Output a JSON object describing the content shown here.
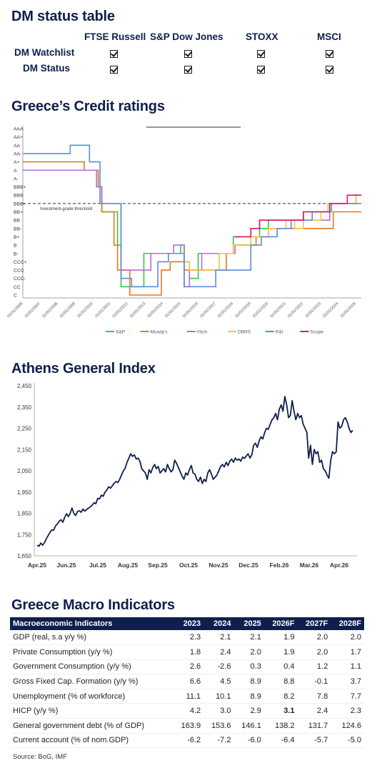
{
  "dm_table": {
    "title": "DM status table",
    "columns": [
      "FTSE Russell",
      "S&P Dow Jones",
      "STOXX",
      "MSCI"
    ],
    "rows": [
      {
        "label": "DM Watchlist",
        "checks": [
          true,
          true,
          true,
          true
        ]
      },
      {
        "label": "DM Status",
        "checks": [
          true,
          true,
          true,
          true
        ]
      }
    ]
  },
  "chart_data": [
    {
      "type": "line",
      "title": "Greece’s Credit ratings",
      "y_categories": [
        "C",
        "CC",
        "CCC-",
        "CCC",
        "CCC+",
        "B-",
        "B",
        "B+",
        "BB-",
        "BB",
        "BB+",
        "BBB-",
        "BBB",
        "BBB+",
        "A-",
        "A",
        "A+",
        "AA-",
        "AA",
        "AA+",
        "AAA"
      ],
      "x_ticks": [
        "01/01/2006",
        "01/01/2007",
        "01/01/2008",
        "01/01/2009",
        "01/01/2010",
        "01/01/2011",
        "01/01/2012",
        "01/01/2013",
        "01/01/2014",
        "01/01/2015",
        "01/01/2016",
        "01/01/2017",
        "01/01/2018",
        "01/01/2019",
        "01/01/2020",
        "01/01/2021",
        "01/01/2022",
        "01/01/2023",
        "01/01/2024",
        "01/01/2025"
      ],
      "threshold": {
        "level": "BBB-",
        "label": "Investment-grade threshold"
      },
      "series": [
        {
          "name": "S&P",
          "color": "#2ecc40",
          "points": [
            [
              2006,
              "A"
            ],
            [
              2009.0,
              "A"
            ],
            [
              2010.3,
              "BBB+"
            ],
            [
              2010.5,
              "BB+"
            ],
            [
              2011.4,
              "B"
            ],
            [
              2011.6,
              "CC"
            ],
            [
              2012.0,
              "CC"
            ],
            [
              2012.9,
              "B-"
            ],
            [
              2014.0,
              "B-"
            ],
            [
              2015.0,
              "B"
            ],
            [
              2015.2,
              "CCC+"
            ],
            [
              2015.5,
              "CCC-"
            ],
            [
              2016.0,
              "B-"
            ],
            [
              2016.5,
              "B-"
            ],
            [
              2017.0,
              "B-"
            ],
            [
              2018.0,
              "B+"
            ],
            [
              2018.5,
              "B+"
            ],
            [
              2019.5,
              "BB-"
            ],
            [
              2020.0,
              "BB"
            ],
            [
              2021.0,
              "BB"
            ],
            [
              2022.0,
              "BB+"
            ],
            [
              2023.4,
              "BBB-"
            ],
            [
              2025.0,
              "BBB"
            ]
          ]
        },
        {
          "name": "Moody's",
          "color": "#e6781e",
          "points": [
            [
              2006,
              "A+"
            ],
            [
              2009.5,
              "A"
            ],
            [
              2010.3,
              "BBB+"
            ],
            [
              2010.5,
              "BB+"
            ],
            [
              2011.2,
              "B"
            ],
            [
              2011.4,
              "CCC"
            ],
            [
              2012.1,
              "C"
            ],
            [
              2013.6,
              "C"
            ],
            [
              2013.9,
              "CCC"
            ],
            [
              2014.4,
              "CCC+"
            ],
            [
              2015.2,
              "CCC"
            ],
            [
              2016.5,
              "CCC"
            ],
            [
              2017.6,
              "B-"
            ],
            [
              2018.1,
              "B"
            ],
            [
              2019.3,
              "B+"
            ],
            [
              2020.0,
              "BB-"
            ],
            [
              2021.0,
              "BB-"
            ],
            [
              2022.0,
              "BB-"
            ],
            [
              2023.0,
              "BB-"
            ],
            [
              2023.7,
              "BB+"
            ],
            [
              2024.0,
              "BB+"
            ],
            [
              2025.0,
              "BB+"
            ]
          ]
        },
        {
          "name": "Fitch",
          "color": "#b86bd6",
          "points": [
            [
              2006,
              "A"
            ],
            [
              2009.3,
              "A"
            ],
            [
              2010.2,
              "BBB+"
            ],
            [
              2010.5,
              "BBB-"
            ],
            [
              2011.3,
              "BBB-"
            ],
            [
              2011.6,
              "CCC"
            ],
            [
              2012.2,
              "CCC"
            ],
            [
              2013.3,
              "B-"
            ],
            [
              2014.0,
              "B-"
            ],
            [
              2014.6,
              "B"
            ],
            [
              2015.2,
              "CC"
            ],
            [
              2015.5,
              "CCC"
            ],
            [
              2016.2,
              "B-"
            ],
            [
              2017.5,
              "B-"
            ],
            [
              2018.1,
              "B"
            ],
            [
              2019.0,
              "BB-"
            ],
            [
              2019.5,
              "BB"
            ],
            [
              2020.0,
              "BB"
            ],
            [
              2022.0,
              "BB"
            ],
            [
              2023.0,
              "BB"
            ],
            [
              2023.5,
              "BBB-"
            ],
            [
              2025.0,
              "BBB"
            ]
          ]
        },
        {
          "name": "DBRS",
          "color": "#f5c242",
          "points": [
            [
              2015.2,
              "CCC+"
            ],
            [
              2015.5,
              "CCC"
            ],
            [
              2016.5,
              "CCC"
            ],
            [
              2017.2,
              "B-"
            ],
            [
              2018.0,
              "B"
            ],
            [
              2019.0,
              "B+"
            ],
            [
              2020.0,
              "BB-"
            ],
            [
              2021.0,
              "BB"
            ],
            [
              2021.5,
              "BB-"
            ],
            [
              2022.0,
              "BB"
            ],
            [
              2023.0,
              "BB+"
            ],
            [
              2023.4,
              "BBB-"
            ],
            [
              2024.0,
              "BBB-"
            ],
            [
              2025.0,
              "BBB"
            ]
          ]
        },
        {
          "name": "R&I",
          "color": "#5b8fd6",
          "points": [
            [
              2006,
              "AA-"
            ],
            [
              2008.3,
              "AA-"
            ],
            [
              2008.7,
              "AA"
            ],
            [
              2009.4,
              "AA"
            ],
            [
              2009.8,
              "A+"
            ],
            [
              2010.4,
              "BBB-"
            ],
            [
              2011.3,
              "BBB-"
            ],
            [
              2011.6,
              "CCC-"
            ],
            [
              2012.2,
              "CC"
            ],
            [
              2013.2,
              "CC"
            ],
            [
              2013.7,
              "CCC+"
            ],
            [
              2014.3,
              "B-"
            ],
            [
              2014.8,
              "B-"
            ],
            [
              2015.2,
              "CC"
            ],
            [
              2016.0,
              "CC"
            ],
            [
              2016.5,
              "CC"
            ],
            [
              2017.0,
              "CCC"
            ],
            [
              2018.0,
              "CCC"
            ],
            [
              2019.0,
              "B"
            ],
            [
              2019.6,
              "B+"
            ],
            [
              2020.5,
              "BB-"
            ],
            [
              2021.3,
              "BB"
            ],
            [
              2022.5,
              "BB+"
            ],
            [
              2023.3,
              "BB+"
            ],
            [
              2023.6,
              "BBB-"
            ],
            [
              2025.0,
              "BBB-"
            ]
          ]
        },
        {
          "name": "Scope",
          "color": "#e0176e",
          "points": [
            [
              2018.1,
              "B+"
            ],
            [
              2019.0,
              "BB-"
            ],
            [
              2019.5,
              "BB"
            ],
            [
              2021.0,
              "BB"
            ],
            [
              2022.0,
              "BB+"
            ],
            [
              2023.0,
              "BB+"
            ],
            [
              2023.5,
              "BBB-"
            ],
            [
              2024.3,
              "BBB-"
            ],
            [
              2024.5,
              "BBB"
            ],
            [
              2025.0,
              "BBB"
            ]
          ]
        }
      ]
    },
    {
      "type": "line",
      "title": "Athens General Index",
      "x_ticks": [
        "Apr.25",
        "Jun.25",
        "Jul.25",
        "Aug.25",
        "Sep.25",
        "Oct.25",
        "Nov.25",
        "Dec.25",
        "Feb.26",
        "Mar.26",
        "Apr.26"
      ],
      "y_ticks": [
        "1,650",
        "1,750",
        "1,850",
        "1,950",
        "2,050",
        "2,150",
        "2,250",
        "2,350",
        "2,450"
      ],
      "ylim": [
        1650,
        2450
      ],
      "color": "#0f1f4d",
      "values": [
        1700,
        1695,
        1710,
        1700,
        1712,
        1730,
        1745,
        1760,
        1772,
        1770,
        1790,
        1800,
        1812,
        1820,
        1808,
        1830,
        1848,
        1835,
        1850,
        1875,
        1850,
        1840,
        1858,
        1862,
        1855,
        1870,
        1860,
        1868,
        1875,
        1880,
        1888,
        1900,
        1895,
        1920,
        1918,
        1935,
        1930,
        1950,
        1960,
        1975,
        1968,
        1980,
        1992,
        2000,
        1995,
        2010,
        2030,
        2050,
        2062,
        2090,
        2110,
        2130,
        2118,
        2125,
        2105,
        2110,
        2095,
        2060,
        2050,
        2040,
        2010,
        2055,
        2040,
        2065,
        2080,
        2060,
        2070,
        2040,
        2050,
        2060,
        2045,
        2080,
        2060,
        2045,
        2055,
        2100,
        2085,
        2065,
        2045,
        2025,
        2010,
        2040,
        2030,
        2055,
        2075,
        2040,
        2035,
        2010,
        2000,
        2020,
        1990,
        2010,
        2000,
        2040,
        2055,
        2035,
        2010,
        2020,
        2030,
        2050,
        2070,
        2080,
        2068,
        2090,
        2075,
        2095,
        2105,
        2090,
        2110,
        2100,
        2105,
        2095,
        2115,
        2108,
        2120,
        2130,
        2110,
        2125,
        2170,
        2180,
        2160,
        2190,
        2210,
        2200,
        2230,
        2250,
        2245,
        2270,
        2290,
        2300,
        2320,
        2290,
        2340,
        2360,
        2330,
        2400,
        2360,
        2300,
        2310,
        2380,
        2330,
        2290,
        2320,
        2300,
        2310,
        2270,
        2250,
        2230,
        2110,
        2170,
        2080,
        2150,
        2130,
        2140,
        2090,
        2100,
        2060,
        2050,
        2030,
        2015,
        2100,
        2140,
        2130,
        2140,
        2280,
        2250,
        2260,
        2290,
        2300,
        2280,
        2250,
        2230,
        2240
      ]
    }
  ],
  "macro": {
    "title": "Greece Macro Indicators",
    "header": [
      "Macroeconomic Indicators",
      "2023",
      "2024",
      "2025",
      "2026F",
      "2027F",
      "2028F"
    ],
    "rows": [
      [
        "GDP (real, s.a y/y %)",
        "2.3",
        "2.1",
        "2.1",
        "1.9",
        "2.0",
        "2.0"
      ],
      [
        "Private Consumption (y/y %)",
        "1.8",
        "2.4",
        "2.0",
        "1.9",
        "2.0",
        "1.7"
      ],
      [
        "Government Consumption (y/y %)",
        "2.6",
        "-2.6",
        "0.3",
        "0.4",
        "1.2",
        "1.1"
      ],
      [
        "Gross Fixed Cap. Formation (y/y %)",
        "6.6",
        "4.5",
        "8.9",
        "8.8",
        "-0.1",
        "3.7"
      ],
      [
        "Unemployment (% of workforce)",
        "11.1",
        "10.1",
        "8.9",
        "8.2",
        "7.8",
        "7.7"
      ],
      [
        "HICP (y/y %)",
        "4.2",
        "3.0",
        "2.9",
        "3.1",
        "2.4",
        "2.3"
      ],
      [
        "General government debt (% of GDP)",
        "163.9",
        "153.6",
        "146.1",
        "138.2",
        "131.7",
        "124.6"
      ],
      [
        "Current account (% of nom.GDP)",
        "-6.2",
        "-7.2",
        "-6.0",
        "-6.4",
        "-5.7",
        "-5.0"
      ]
    ],
    "source": "Source: BoG, IMF"
  }
}
